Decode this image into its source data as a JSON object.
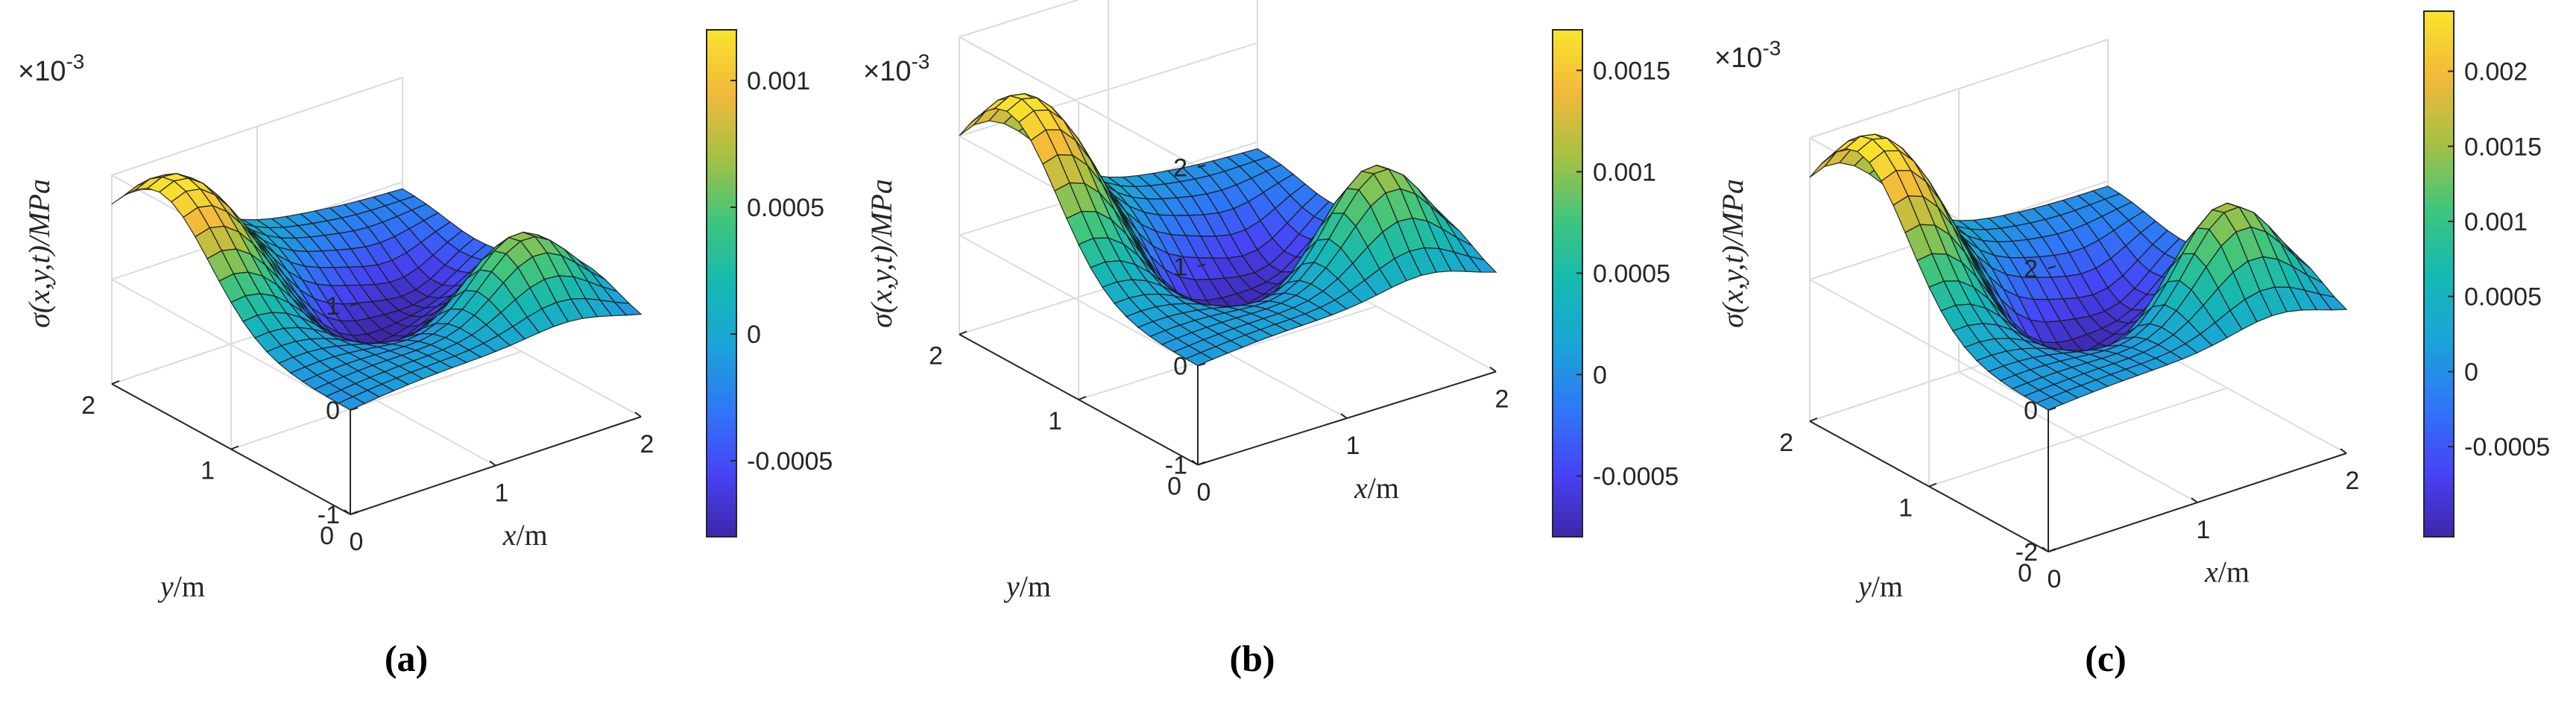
{
  "figure": {
    "colormap": [
      "#3e26a8",
      "#4743f6",
      "#2f77f7",
      "#1ba4d8",
      "#15b9b2",
      "#41c57c",
      "#a7c142",
      "#f2b93b",
      "#f9e42c"
    ]
  },
  "chart_data": [
    {
      "id": "a",
      "type": "surface",
      "panel_label": "(a)",
      "scale_label": "×10",
      "scale_exponent": "-3",
      "xlabel_var": "x",
      "xlabel_unit": "/m",
      "ylabel_var": "y",
      "ylabel_unit": "/m",
      "zlabel": "σ(x,y,t)/MPa",
      "xlim": [
        0,
        2
      ],
      "ylim": [
        0,
        2
      ],
      "zlim": [
        -1,
        1
      ],
      "xticks": [
        "0",
        "1",
        "2"
      ],
      "yticks": [
        "0",
        "1",
        "2"
      ],
      "zticks": [
        "-1",
        "0",
        "1"
      ],
      "grid": 20,
      "surface": {
        "A": 1.15,
        "B": 0.72,
        "C": 0.62,
        "D": 1.05,
        "E": -0.33,
        "F": 0.08
      },
      "colorbar": {
        "min": -0.0008,
        "max": 0.0012,
        "ticks": [
          {
            "value": 0.001,
            "label": "0.001"
          },
          {
            "value": 0.0005,
            "label": "0.0005"
          },
          {
            "value": 0,
            "label": "0"
          },
          {
            "value": -0.0005,
            "label": "-0.0005"
          }
        ]
      }
    },
    {
      "id": "b",
      "type": "surface",
      "panel_label": "(b)",
      "scale_label": "×10",
      "scale_exponent": "-3",
      "xlabel_var": "x",
      "xlabel_unit": "/m",
      "ylabel_var": "y",
      "ylabel_unit": "/m",
      "zlabel": "σ(x,y,t)/MPa",
      "xlim": [
        0,
        2
      ],
      "ylim": [
        0,
        2
      ],
      "zlim": [
        -1,
        2
      ],
      "xticks": [
        "0",
        "1",
        "2"
      ],
      "yticks": [
        "0",
        "1",
        "2"
      ],
      "zticks": [
        "-1",
        "0",
        "1",
        "2"
      ],
      "grid": 20,
      "surface": {
        "A": 1.6,
        "B": 1.05,
        "C": 0.9,
        "D": 1.05,
        "E": -0.45,
        "F": 0.08
      },
      "colorbar": {
        "min": -0.0008,
        "max": 0.0017,
        "ticks": [
          {
            "value": 0.0015,
            "label": "0.0015"
          },
          {
            "value": 0.001,
            "label": "0.001"
          },
          {
            "value": 0.0005,
            "label": "0.0005"
          },
          {
            "value": 0,
            "label": "0"
          },
          {
            "value": -0.0005,
            "label": "-0.0005"
          }
        ]
      }
    },
    {
      "id": "c",
      "type": "surface",
      "panel_label": "(c)",
      "scale_label": "×10",
      "scale_exponent": "-3",
      "xlabel_var": "x",
      "xlabel_unit": "/m",
      "ylabel_var": "y",
      "ylabel_unit": "/m",
      "zlabel": "σ(x,y,t)/MPa",
      "xlim": [
        0,
        2
      ],
      "ylim": [
        0,
        2
      ],
      "zlim": [
        -2,
        2
      ],
      "xticks": [
        "0",
        "1",
        "2"
      ],
      "yticks": [
        "0",
        "1",
        "2"
      ],
      "zticks": [
        "-2",
        "0",
        "2"
      ],
      "grid": 20,
      "surface": {
        "A": 2.3,
        "B": 1.5,
        "C": 1.25,
        "D": 1.05,
        "E": -0.6,
        "F": 0.08
      },
      "colorbar": {
        "min": -0.0011,
        "max": 0.0024,
        "ticks": [
          {
            "value": 0.002,
            "label": "0.002"
          },
          {
            "value": 0.0015,
            "label": "0.0015"
          },
          {
            "value": 0.001,
            "label": "0.001"
          },
          {
            "value": 0.0005,
            "label": "0.0005"
          },
          {
            "value": 0,
            "label": "0"
          },
          {
            "value": -0.0005,
            "label": "-0.0005"
          }
        ]
      }
    }
  ]
}
